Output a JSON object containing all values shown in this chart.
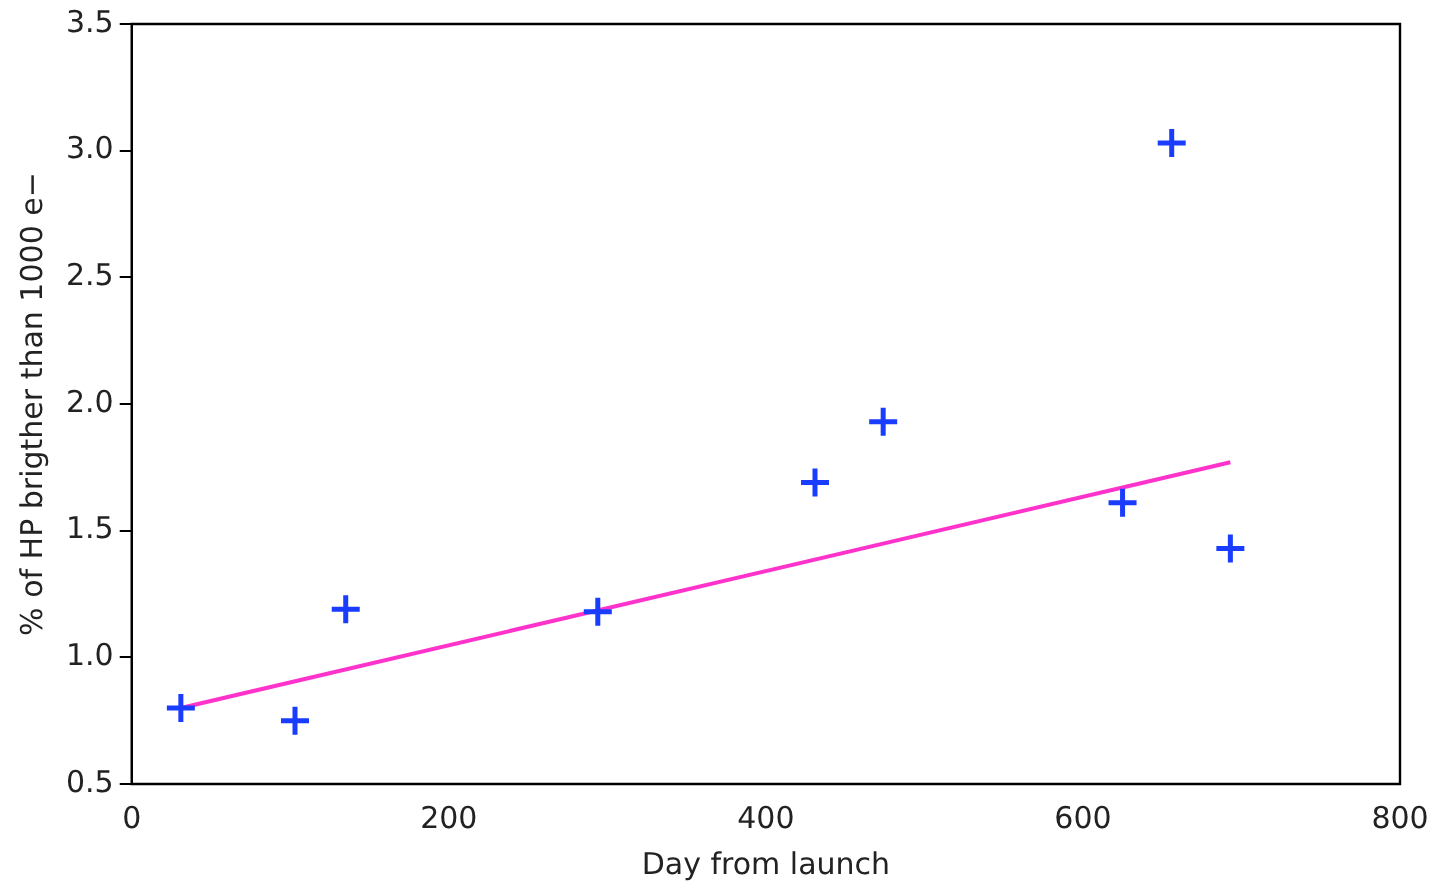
{
  "chart_data": {
    "type": "scatter",
    "xlabel": "Day from launch",
    "ylabel": "% of HP brigther than 1000 e−",
    "xlim": [
      0,
      800
    ],
    "xticks": [
      0,
      200,
      400,
      600,
      800
    ],
    "ylim": [
      0.5,
      3.5
    ],
    "yticks": [
      {
        "value": 0.5,
        "label": "0.5"
      },
      {
        "value": 1,
        "label": "1.0"
      },
      {
        "value": 1.5,
        "label": "1.5"
      },
      {
        "value": 2,
        "label": "2.0"
      },
      {
        "value": 2.5,
        "label": "2.5"
      },
      {
        "value": 3,
        "label": "3.0"
      },
      {
        "value": 3.5,
        "label": "3.5"
      }
    ],
    "grid": false,
    "legend": false,
    "series": [
      {
        "type": "scatter",
        "marker": "cross",
        "color": "#1a3cff",
        "x": [
          31,
          103,
          135,
          294,
          431,
          474,
          625,
          656,
          693
        ],
        "values": [
          0.8,
          0.75,
          1.19,
          1.18,
          1.69,
          1.93,
          1.61,
          3.03,
          1.43
        ]
      },
      {
        "type": "line",
        "color": "#ff33cc",
        "x": [
          31,
          693
        ],
        "values": [
          0.8,
          1.77
        ]
      }
    ]
  }
}
